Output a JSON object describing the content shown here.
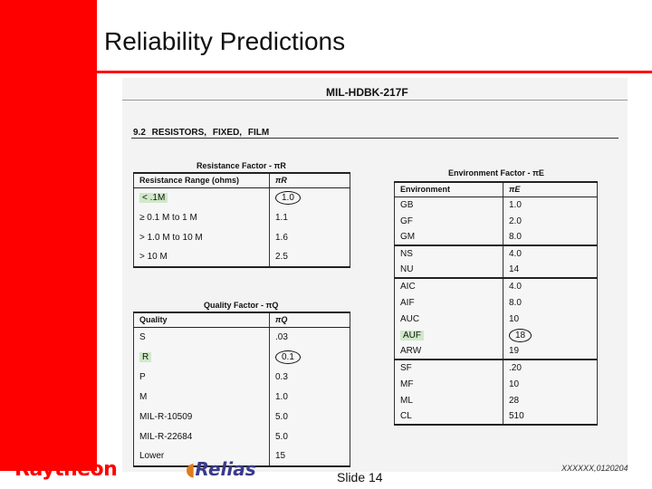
{
  "slide": {
    "title": "Reliability Predictions",
    "slide_number": "Slide 14",
    "footer_id": "XXXXXX,0120204"
  },
  "logos": {
    "raytheon": "Raytheon",
    "relias": "Relias"
  },
  "colors": {
    "accent": "#ff0000",
    "highlight": "#cfe9c8"
  },
  "scan": {
    "doc_title": "MIL-HDBK-217F",
    "section": "9.2  RESISTORS, FIXED, FILM",
    "resistance_factor": {
      "caption": "Resistance Factor - πR",
      "headers": [
        "Resistance Range (ohms)",
        "πR"
      ],
      "rows": [
        {
          "range": "< .1M",
          "value": "1.0"
        },
        {
          "range": "≥ 0.1 M to 1 M",
          "value": "1.1"
        },
        {
          "range": "> 1.0 M to 10 M",
          "value": "1.6"
        },
        {
          "range": "> 10 M",
          "value": "2.5"
        }
      ]
    },
    "quality_factor": {
      "caption": "Quality Factor - πQ",
      "headers": [
        "Quality",
        "πQ"
      ],
      "rows": [
        {
          "quality": "S",
          "value": ".03"
        },
        {
          "quality": "R",
          "value": "0.1"
        },
        {
          "quality": "P",
          "value": "0.3"
        },
        {
          "quality": "M",
          "value": "1.0"
        },
        {
          "quality": "MIL-R-10509",
          "value": "5.0"
        },
        {
          "quality": "MIL-R-22684",
          "value": "5.0"
        },
        {
          "quality": "Lower",
          "value": "15"
        }
      ]
    },
    "environment_factor": {
      "caption": "Environment Factor - πE",
      "headers": [
        "Environment",
        "πE"
      ],
      "rows": [
        {
          "env": "GB",
          "value": "1.0"
        },
        {
          "env": "GF",
          "value": "2.0"
        },
        {
          "env": "GM",
          "value": "8.0"
        },
        {
          "env": "NS",
          "value": "4.0"
        },
        {
          "env": "NU",
          "value": "14"
        },
        {
          "env": "AIC",
          "value": "4.0"
        },
        {
          "env": "AIF",
          "value": "8.0"
        },
        {
          "env": "AUC",
          "value": "10"
        },
        {
          "env": "AUF",
          "value": "18"
        },
        {
          "env": "ARW",
          "value": "19"
        },
        {
          "env": "SF",
          "value": ".20"
        },
        {
          "env": "MF",
          "value": "10"
        },
        {
          "env": "ML",
          "value": "28"
        },
        {
          "env": "CL",
          "value": "510"
        }
      ]
    }
  }
}
